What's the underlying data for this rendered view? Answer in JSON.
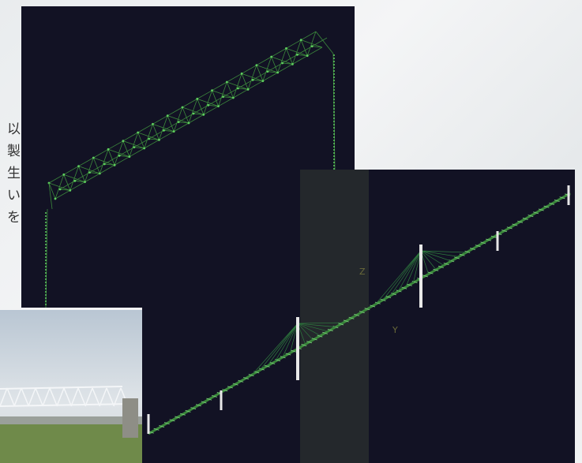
{
  "side_text": [
    "以",
    "製",
    "生",
    "い",
    "を"
  ],
  "axis_labels": {
    "z": "Z",
    "y": "Y"
  }
}
